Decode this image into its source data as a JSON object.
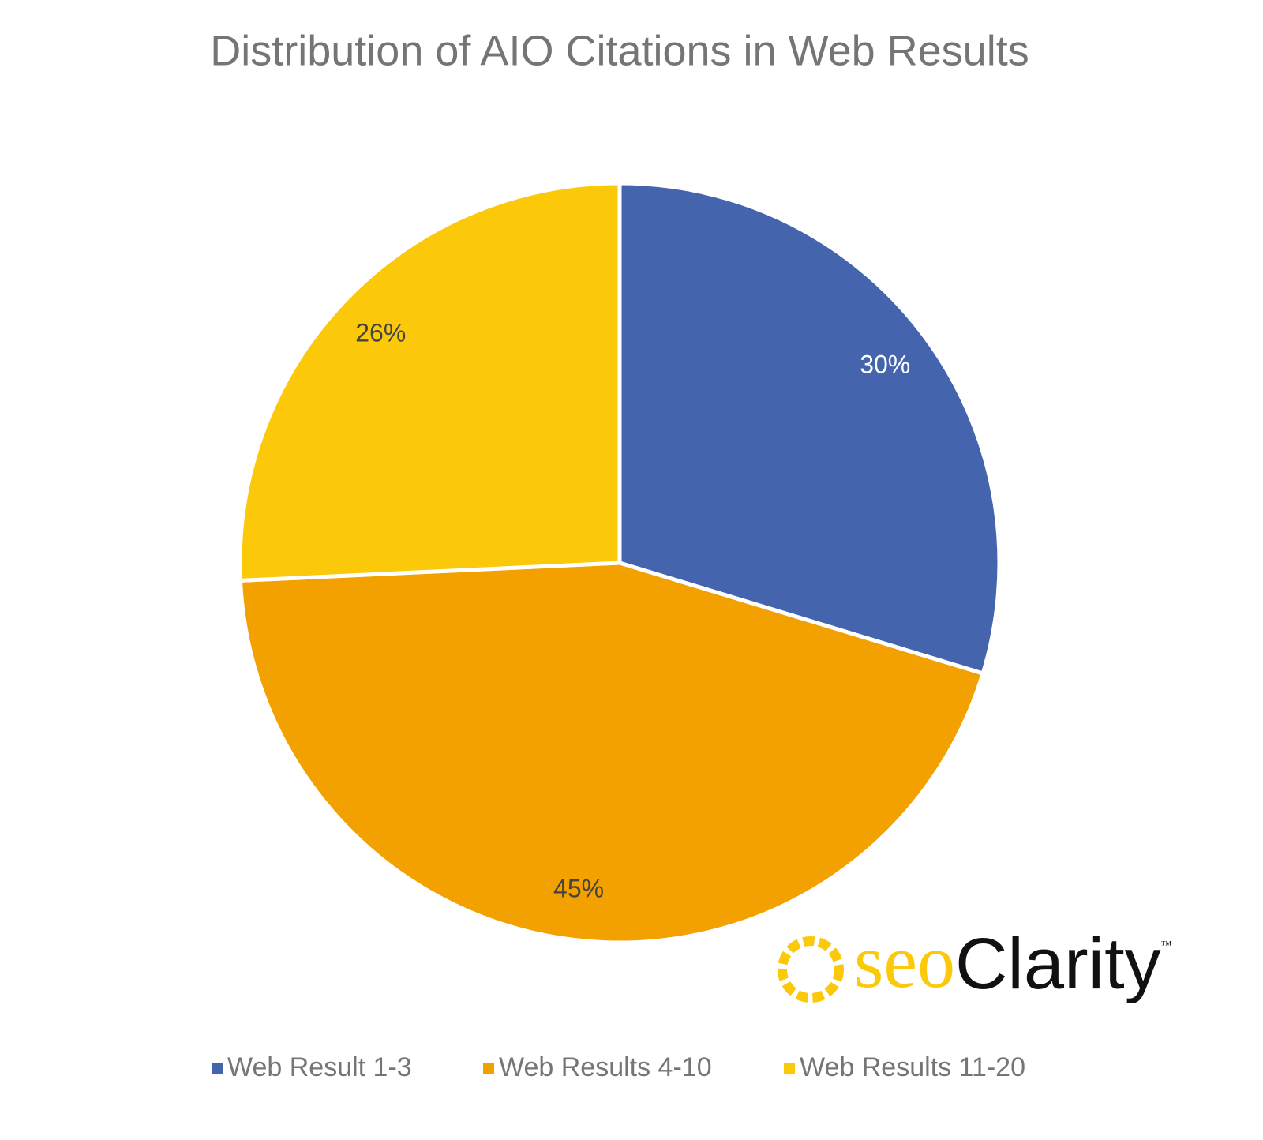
{
  "chart_data": {
    "type": "pie",
    "title": "Distribution of AIO Citations in Web Results",
    "categories": [
      "Web Result 1-3",
      "Web Results 4-10",
      "Web Results 11-20"
    ],
    "values": [
      30,
      45,
      26
    ],
    "value_labels": [
      "30%",
      "45%",
      "26%"
    ],
    "colors": [
      "#4464ad",
      "#f2a100",
      "#fcc80a"
    ],
    "legend": "bottom",
    "watermark": {
      "brand_a": "seo",
      "brand_b": "Clarity",
      "trademark": "™"
    }
  }
}
